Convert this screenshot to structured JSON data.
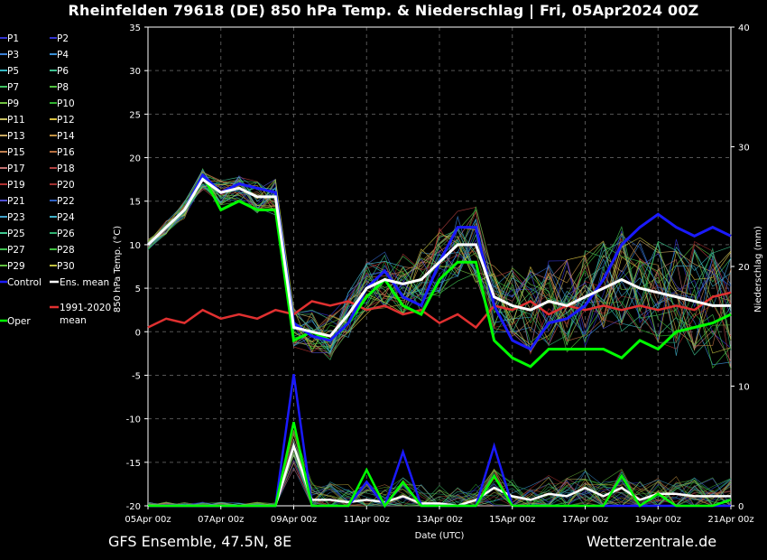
{
  "page": {
    "title": "Rheinfelden 79618 (DE)  850 hPa Temp. & Niederschlag | Fri, 05Apr2024 00Z",
    "footer_left": "GFS Ensemble, 47.5N, 8E",
    "footer_right": "Wetterzentrale.de"
  },
  "colors": {
    "background": "#000000",
    "ens_mean": "#ffffff",
    "control": "#1a1aff",
    "oper": "#00ff00",
    "climate": "#e03030",
    "grid": "#555555"
  },
  "legend": {
    "members": [
      {
        "label": "P1",
        "color": "#3333cc"
      },
      {
        "label": "P2",
        "color": "#3333cc"
      },
      {
        "label": "P3",
        "color": "#3a7fd5"
      },
      {
        "label": "P4",
        "color": "#3a8fd5"
      },
      {
        "label": "P5",
        "color": "#35b5c0"
      },
      {
        "label": "P6",
        "color": "#3fbf8f"
      },
      {
        "label": "P7",
        "color": "#40c060"
      },
      {
        "label": "P8",
        "color": "#50c040"
      },
      {
        "label": "P9",
        "color": "#70c040"
      },
      {
        "label": "P10",
        "color": "#30b030"
      },
      {
        "label": "P11",
        "color": "#c8c060"
      },
      {
        "label": "P12",
        "color": "#d8c040"
      },
      {
        "label": "P13",
        "color": "#c8a860"
      },
      {
        "label": "P14",
        "color": "#c09040"
      },
      {
        "label": "P15",
        "color": "#c08050"
      },
      {
        "label": "P16",
        "color": "#b87040"
      },
      {
        "label": "P17",
        "color": "#c07070"
      },
      {
        "label": "P18",
        "color": "#b04040"
      },
      {
        "label": "P19",
        "color": "#b03030"
      },
      {
        "label": "P20",
        "color": "#a03030"
      },
      {
        "label": "P21",
        "color": "#5050d0"
      },
      {
        "label": "P22",
        "color": "#3060c0"
      },
      {
        "label": "P23",
        "color": "#40a0c8"
      },
      {
        "label": "P24",
        "color": "#40b0c8"
      },
      {
        "label": "P25",
        "color": "#40c890"
      },
      {
        "label": "P26",
        "color": "#30b070"
      },
      {
        "label": "P27",
        "color": "#40c050"
      },
      {
        "label": "P28",
        "color": "#40c040"
      },
      {
        "label": "P29",
        "color": "#60c040"
      },
      {
        "label": "P30",
        "color": "#c0c040"
      }
    ],
    "control": "Control",
    "ens_mean": "Ens. mean",
    "climate_line1": "1991-2020",
    "climate_line2": "mean",
    "oper": "Oper"
  },
  "chart_data": {
    "type": "line",
    "title": "Rheinfelden 79618 (DE)  850 hPa Temp. & Niederschlag | Fri, 05Apr2024 00Z",
    "xlabel": "Date (UTC)",
    "ylabel_left": "850 hPa Temp. (°C)",
    "ylabel_right": "Niederschlag (mm)",
    "x_ticks": [
      "05Apr 00z",
      "07Apr 00z",
      "09Apr 00z",
      "11Apr 00z",
      "13Apr 00z",
      "15Apr 00z",
      "17Apr 00z",
      "19Apr 00z",
      "21Apr 00z"
    ],
    "x_range_days": [
      0,
      16
    ],
    "ylim_left": [
      -20,
      35
    ],
    "yticks_left": [
      -20,
      -15,
      -10,
      -5,
      0,
      5,
      10,
      15,
      20,
      25,
      30,
      35
    ],
    "ylim_right": [
      0,
      40
    ],
    "yticks_right": [
      0,
      10,
      20,
      30,
      40
    ],
    "grid": true,
    "x_days": [
      0,
      0.5,
      1,
      1.5,
      2,
      2.5,
      3,
      3.5,
      4,
      4.5,
      5,
      5.5,
      6,
      6.5,
      7,
      7.5,
      8,
      8.5,
      9,
      9.5,
      10,
      10.5,
      11,
      11.5,
      12,
      12.5,
      13,
      13.5,
      14,
      14.5,
      15,
      15.5,
      16
    ],
    "series_temperature": [
      {
        "name": "Ens. mean",
        "values": [
          10,
          12,
          14,
          17.5,
          16,
          16.5,
          15.5,
          15.5,
          0.5,
          0,
          -0.5,
          2,
          5,
          6,
          5.5,
          6,
          8,
          10,
          10,
          4,
          3,
          2.5,
          3.5,
          3,
          4,
          5,
          6,
          5,
          4.5,
          4,
          3.5,
          3,
          3
        ]
      },
      {
        "name": "Control",
        "values": [
          10,
          12,
          14,
          18,
          16,
          17,
          16.5,
          16,
          1,
          -0.5,
          -1,
          1,
          5,
          7,
          4,
          3,
          8,
          12,
          12,
          3,
          -1,
          -2,
          1,
          1.5,
          3,
          6,
          10,
          12,
          13.5,
          12,
          11,
          12,
          11
        ]
      },
      {
        "name": "Oper",
        "values": [
          10,
          12,
          14,
          18,
          14,
          15,
          14,
          14,
          -1,
          0,
          -1,
          1,
          4,
          6,
          3,
          2,
          6,
          8,
          8,
          -1,
          -3,
          -4,
          -2,
          -2,
          -2,
          -2,
          -3,
          -1,
          -2,
          0,
          0.5,
          1,
          2
        ]
      },
      {
        "name": "1991-2020 mean",
        "values": [
          0.5,
          1.5,
          1,
          2.5,
          1.5,
          2,
          1.5,
          2.5,
          2,
          3.5,
          3,
          3.5,
          2.5,
          3,
          2,
          2.5,
          1,
          2,
          0.5,
          3,
          2.5,
          3.5,
          2,
          3,
          2.5,
          3,
          2.5,
          3,
          2.5,
          3,
          2.5,
          4,
          4.5
        ]
      }
    ],
    "series_precipitation": [
      {
        "name": "Ens. mean",
        "values": [
          0,
          0,
          0,
          0,
          0,
          0,
          0,
          0,
          5,
          0.5,
          0.5,
          0.3,
          0.5,
          0.3,
          0.8,
          0.2,
          0.2,
          0,
          0.5,
          1.5,
          0.8,
          0.5,
          1,
          0.8,
          1.5,
          0.8,
          1.5,
          0.5,
          1,
          1,
          0.8,
          0.8,
          0.8
        ]
      },
      {
        "name": "Control",
        "values": [
          0,
          0,
          0,
          0,
          0,
          0,
          0,
          0,
          11,
          0,
          0,
          0,
          2,
          0,
          4.5,
          0,
          0,
          0,
          0,
          5,
          0,
          0,
          0,
          0,
          0,
          0,
          0,
          0,
          0,
          0,
          0,
          0,
          0
        ]
      },
      {
        "name": "Oper",
        "values": [
          0,
          0,
          0,
          0,
          0,
          0,
          0,
          0,
          7,
          0,
          0,
          0,
          3,
          0,
          2,
          0,
          0,
          0,
          0,
          2.5,
          0,
          0,
          0,
          0,
          0,
          0,
          2.5,
          0,
          1,
          0,
          0,
          0,
          0.5
        ]
      }
    ]
  }
}
